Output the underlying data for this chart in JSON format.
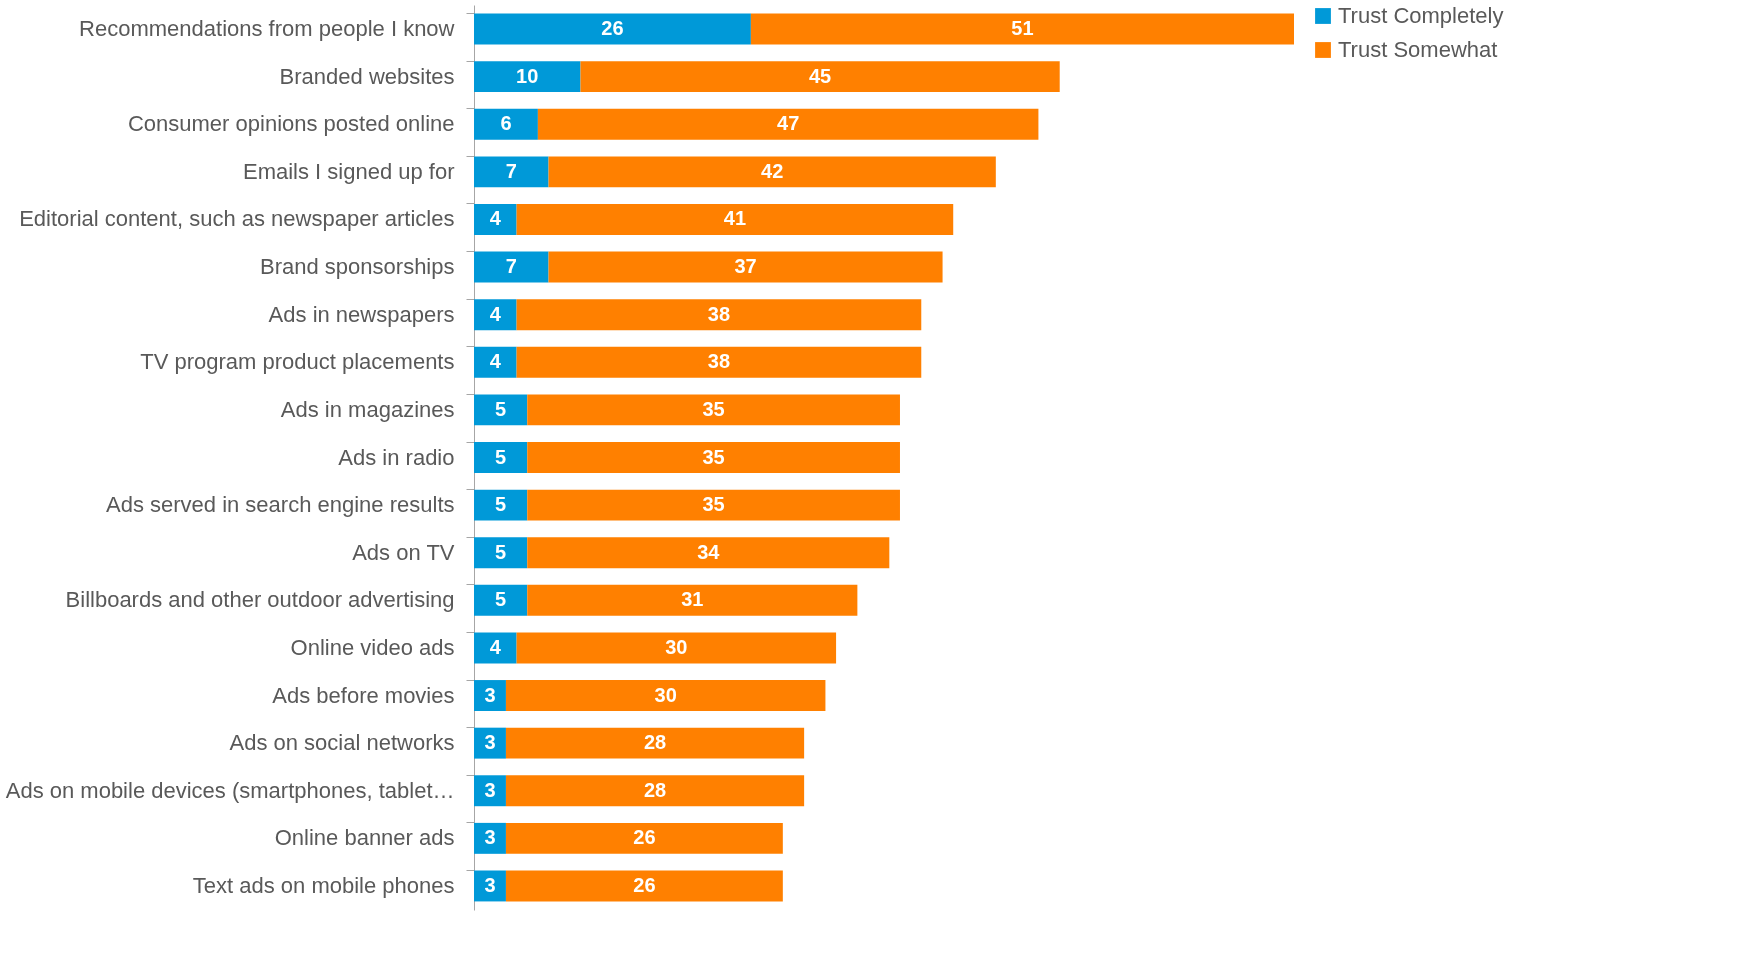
{
  "chart_data": {
    "type": "bar",
    "orientation": "horizontal",
    "stacked": true,
    "data_labels": true,
    "legend": "right",
    "categories": [
      "Recommendations from people I know",
      "Branded websites",
      "Consumer opinions posted online",
      "Emails I signed up for",
      "Editorial content, such as newspaper articles",
      "Brand sponsorships",
      "Ads in newspapers",
      "TV program product placements",
      "Ads in magazines",
      "Ads in radio",
      "Ads served in search engine results",
      "Ads on TV",
      "Billboards and other outdoor advertising",
      "Online video ads",
      "Ads before movies",
      "Ads on social networks",
      "Ads on mobile devices (smartphones, tablet…",
      "Online banner ads",
      "Text ads on mobile phones"
    ],
    "series": [
      {
        "name": "Trust Completely",
        "color": "#0099d8",
        "values": [
          26,
          10,
          6,
          7,
          4,
          7,
          4,
          4,
          5,
          5,
          5,
          5,
          5,
          4,
          3,
          3,
          3,
          3,
          3
        ]
      },
      {
        "name": "Trust Somewhat",
        "color": "#ff8000",
        "values": [
          51,
          45,
          47,
          42,
          41,
          37,
          38,
          38,
          35,
          35,
          35,
          34,
          31,
          30,
          30,
          28,
          28,
          26,
          26
        ]
      }
    ]
  }
}
